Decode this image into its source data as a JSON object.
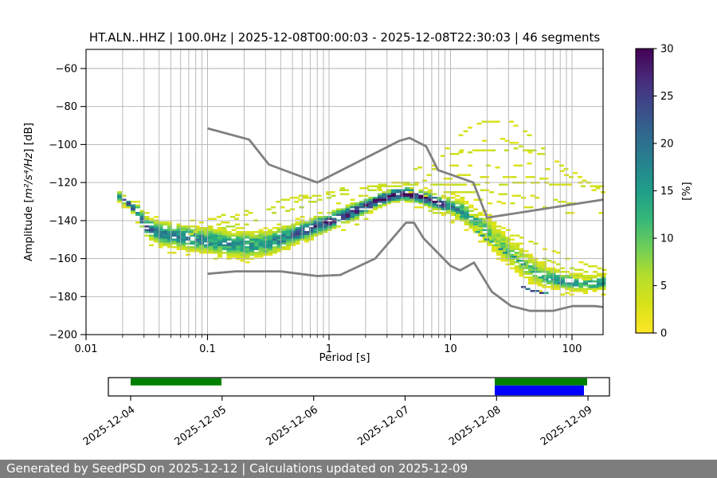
{
  "page": {
    "background": "#ffffff"
  },
  "footer": {
    "text": "Generated by SeedPSD on 2025-12-12 | Calculations updated on 2025-12-09",
    "bg": "#7d7d7d",
    "fg": "#ffffff"
  },
  "chart_data": {
    "type": "heatmap",
    "title": "HT.ALN..HHZ | 100.0Hz | 2025-12-08T00:00:03 - 2025-12-08T22:30:03 | 46 segments",
    "xlabel": "Period [s]",
    "ylabel": "Amplitude [m²/s⁴/Hz] [dB]",
    "ylabel_parts": {
      "pre": "Amplitude [",
      "math": "m²/s⁴/Hz",
      "post": "] [dB]"
    },
    "x_scale": "log",
    "xlim": [
      0.01,
      180
    ],
    "ylim": [
      -200,
      -50
    ],
    "grid": true,
    "x_ticks": [
      0.01,
      0.1,
      1,
      10,
      100
    ],
    "x_tick_labels": [
      "0.01",
      "0.1",
      "1",
      "10",
      "100"
    ],
    "y_ticks": [
      -60,
      -80,
      -100,
      -120,
      -140,
      -160,
      -180,
      -200
    ],
    "y_tick_labels": [
      "−60",
      "−80",
      "−100",
      "−120",
      "−140",
      "−160",
      "−180",
      "−200"
    ],
    "colorbar": {
      "label": "[%]",
      "min": 0,
      "max": 30,
      "ticks": [
        0,
        5,
        10,
        15,
        20,
        25,
        30
      ],
      "colormap": "viridis_r",
      "low_color": "#fde725",
      "high_color": "#440154"
    },
    "noise_models": {
      "color": "#808080",
      "nlnm": [
        [
          0.1,
          -168
        ],
        [
          0.17,
          -166.7
        ],
        [
          0.4,
          -166.7
        ],
        [
          0.8,
          -169.2
        ],
        [
          1.24,
          -168.6
        ],
        [
          2.4,
          -159.98
        ],
        [
          4.3,
          -141.1
        ],
        [
          5,
          -141.1
        ],
        [
          6,
          -149.36
        ],
        [
          10,
          -163.79
        ],
        [
          12,
          -166.2
        ],
        [
          15.6,
          -162.1
        ],
        [
          21.9,
          -177.5
        ],
        [
          31.6,
          -185
        ],
        [
          45,
          -187.5
        ],
        [
          70,
          -187.5
        ],
        [
          101,
          -185
        ],
        [
          154,
          -185
        ],
        [
          180,
          -185.5
        ]
      ],
      "nhnm": [
        [
          0.1,
          -91.5
        ],
        [
          0.22,
          -97.4
        ],
        [
          0.32,
          -110.5
        ],
        [
          0.8,
          -120
        ],
        [
          3.8,
          -98
        ],
        [
          4.6,
          -96.5
        ],
        [
          6.3,
          -101
        ],
        [
          7.9,
          -113.5
        ],
        [
          15.4,
          -120
        ],
        [
          20,
          -138.5
        ],
        [
          180,
          -129
        ]
      ]
    },
    "ppsd": {
      "period_range": [
        0.018,
        180
      ],
      "period_step_decades": 0.0376,
      "db_bin": 1,
      "main_band_anchors": [
        [
          0.018,
          -126.5,
          2.5,
          16
        ],
        [
          0.022,
          -130.5,
          2.5,
          22
        ],
        [
          0.027,
          -135.5,
          3,
          26
        ],
        [
          0.031,
          -143,
          5,
          22
        ],
        [
          0.04,
          -146.5,
          6,
          18
        ],
        [
          0.06,
          -148.5,
          6.5,
          17
        ],
        [
          0.1,
          -150.5,
          6.5,
          17
        ],
        [
          0.15,
          -152,
          6.5,
          16
        ],
        [
          0.22,
          -153,
          7,
          15
        ],
        [
          0.33,
          -151.5,
          6.5,
          16
        ],
        [
          0.5,
          -147.5,
          5.5,
          19
        ],
        [
          0.75,
          -143.5,
          5,
          23
        ],
        [
          1.1,
          -139.5,
          4.5,
          26
        ],
        [
          1.7,
          -134.5,
          4,
          28
        ],
        [
          2.5,
          -129.5,
          3.5,
          29
        ],
        [
          3.5,
          -126.3,
          3.5,
          30
        ],
        [
          4.5,
          -126,
          3.5,
          30
        ],
        [
          6,
          -128,
          3.5,
          27
        ],
        [
          8,
          -130.5,
          4,
          24
        ],
        [
          10.5,
          -133,
          4.5,
          20
        ],
        [
          14,
          -137,
          5.5,
          15
        ],
        [
          18,
          -142.5,
          6.5,
          11
        ],
        [
          24,
          -150,
          7.5,
          9
        ],
        [
          32,
          -157.5,
          7.5,
          9
        ],
        [
          42,
          -163.5,
          7,
          10
        ],
        [
          55,
          -168.5,
          6,
          12
        ],
        [
          75,
          -171,
          5,
          14
        ],
        [
          100,
          -172.3,
          4.5,
          15
        ],
        [
          140,
          -172.8,
          4,
          15
        ],
        [
          180,
          -172.3,
          4,
          15
        ]
      ],
      "features": [
        {
          "name": "upper-arc",
          "pct": 3,
          "density": 0.55,
          "points": [
            [
              4.5,
              -124
            ],
            [
              6,
              -117
            ],
            [
              8,
              -107
            ],
            [
              10,
              -98
            ],
            [
              13,
              -91
            ],
            [
              17,
              -87.5
            ],
            [
              22,
              -86.5
            ],
            [
              28,
              -88
            ],
            [
              35,
              -92
            ],
            [
              45,
              -97.5
            ],
            [
              60,
              -104
            ],
            [
              80,
              -111
            ],
            [
              110,
              -117
            ],
            [
              150,
              -122
            ],
            [
              180,
              -125
            ]
          ]
        },
        {
          "name": "upper-arc-echo",
          "pct": 3,
          "density": 0.5,
          "points": [
            [
              7,
              -115
            ],
            [
              10,
              -107
            ],
            [
              14,
              -101
            ],
            [
              19,
              -97.5
            ],
            [
              26,
              -97
            ],
            [
              35,
              -100
            ],
            [
              50,
              -106
            ],
            [
              70,
              -112
            ],
            [
              100,
              -118
            ],
            [
              140,
              -123
            ],
            [
              180,
              -127
            ]
          ]
        },
        {
          "name": "band-103",
          "pct": 4,
          "density": 0.65,
          "points": [
            [
              9,
              -106
            ],
            [
              12,
              -104
            ],
            [
              17,
              -103
            ],
            [
              25,
              -103
            ],
            [
              35,
              -103.5
            ],
            [
              50,
              -104.5
            ],
            [
              65,
              -106
            ]
          ]
        },
        {
          "name": "band-111",
          "pct": 3,
          "density": 0.45,
          "points": [
            [
              4.5,
              -113
            ],
            [
              7,
              -111.5
            ],
            [
              12,
              -110.5
            ],
            [
              20,
              -110.5
            ],
            [
              35,
              -111
            ],
            [
              60,
              -112
            ],
            [
              90,
              -113.5
            ]
          ]
        },
        {
          "name": "band-121",
          "pct": 4,
          "density": 0.7,
          "points": [
            [
              2.2,
              -122.5
            ],
            [
              4,
              -121.5
            ],
            [
              8,
              -120.8
            ],
            [
              15,
              -120.5
            ],
            [
              30,
              -121
            ],
            [
              60,
              -121.5
            ],
            [
              100,
              -122
            ],
            [
              150,
              -122.5
            ],
            [
              180,
              -122.5
            ]
          ]
        },
        {
          "name": "band-117",
          "pct": 3,
          "density": 0.45,
          "points": [
            [
              8,
              -118
            ],
            [
              14,
              -116.8
            ],
            [
              25,
              -116.5
            ],
            [
              45,
              -117
            ],
            [
              70,
              -117.8
            ]
          ]
        },
        {
          "name": "left-diag-1",
          "pct": 3.5,
          "density": 0.6,
          "points": [
            [
              0.1,
              -140.5
            ],
            [
              0.16,
              -136.5
            ],
            [
              0.27,
              -131.5
            ],
            [
              0.45,
              -127.5
            ],
            [
              0.75,
              -124.5
            ],
            [
              1.3,
              -122.5
            ],
            [
              2.2,
              -121.8
            ],
            [
              3.5,
              -122
            ]
          ]
        },
        {
          "name": "left-diag-2",
          "pct": 4,
          "density": 0.55,
          "points": [
            [
              0.07,
              -146
            ],
            [
              0.12,
              -142
            ],
            [
              0.2,
              -137.5
            ],
            [
              0.35,
              -132.5
            ],
            [
              0.6,
              -128.5
            ],
            [
              1,
              -125.5
            ],
            [
              1.7,
              -124
            ]
          ]
        },
        {
          "name": "left-diag-3",
          "pct": 5.5,
          "density": 0.6,
          "points": [
            [
              0.13,
              -145
            ],
            [
              0.22,
              -141
            ],
            [
              0.4,
              -136
            ],
            [
              0.7,
              -131
            ],
            [
              1.2,
              -127.5
            ],
            [
              2,
              -125
            ],
            [
              3.2,
              -123.5
            ]
          ]
        },
        {
          "name": "lower-right-1",
          "pct": 4.5,
          "density": 0.65,
          "points": [
            [
              6,
              -133.5
            ],
            [
              10,
              -137
            ],
            [
              17,
              -143
            ],
            [
              28,
              -151
            ],
            [
              45,
              -158.5
            ],
            [
              75,
              -164.5
            ],
            [
              120,
              -167.5
            ],
            [
              180,
              -169
            ]
          ]
        },
        {
          "name": "lower-right-2",
          "pct": 3.5,
          "density": 0.55,
          "points": [
            [
              9,
              -139
            ],
            [
              14,
              -144
            ],
            [
              22,
              -151
            ],
            [
              35,
              -158
            ],
            [
              60,
              -165
            ],
            [
              100,
              -169
            ],
            [
              160,
              -170.5
            ]
          ]
        },
        {
          "name": "lower-right-3",
          "pct": 3,
          "density": 0.5,
          "points": [
            [
              12,
              -135
            ],
            [
              20,
              -140
            ],
            [
              32,
              -147
            ],
            [
              50,
              -154
            ],
            [
              85,
              -160
            ],
            [
              140,
              -164
            ],
            [
              180,
              -166
            ]
          ]
        },
        {
          "name": "mid-scatter-1",
          "pct": 3,
          "density": 0.5,
          "points": [
            [
              6,
              -127
            ],
            [
              11,
              -128
            ],
            [
              22,
              -130
            ],
            [
              45,
              -133
            ],
            [
              90,
              -137
            ],
            [
              160,
              -141
            ]
          ]
        },
        {
          "name": "mid-scatter-2",
          "pct": 3.5,
          "density": 0.5,
          "points": [
            [
              8,
              -124.5
            ],
            [
              16,
              -125
            ],
            [
              32,
              -127
            ],
            [
              65,
              -130
            ],
            [
              130,
              -134
            ],
            [
              180,
              -136
            ]
          ]
        },
        {
          "name": "bottom-edge",
          "pct": 14,
          "density": 0.85,
          "points": [
            [
              16,
              -146
            ],
            [
              22,
              -152.5
            ],
            [
              30,
              -159
            ],
            [
              40,
              -164.5
            ],
            [
              52,
              -169
            ],
            [
              68,
              -171.5
            ],
            [
              90,
              -173
            ],
            [
              120,
              -174
            ],
            [
              155,
              -173.5
            ],
            [
              180,
              -173
            ]
          ]
        },
        {
          "name": "bottom-dark-spots",
          "pct": 19,
          "density": 0.5,
          "points": [
            [
              38,
              -174.5
            ],
            [
              48,
              -176
            ],
            [
              58,
              -177
            ],
            [
              68,
              -176
            ]
          ]
        },
        {
          "name": "peak-top-fringe",
          "pct": 3,
          "density": 0.4,
          "points": [
            [
              1.5,
              -124
            ],
            [
              2.5,
              -121.5
            ],
            [
              4,
              -120.5
            ],
            [
              5.5,
              -121
            ]
          ]
        }
      ]
    },
    "timeline": {
      "axis_start_day": -0.244,
      "axis_end_day": 5.234,
      "tick_labels": [
        "2025-12-04",
        "2025-12-05",
        "2025-12-06",
        "2025-12-07",
        "2025-12-08",
        "2025-12-09"
      ],
      "segments": [
        {
          "name": "data-early",
          "color": "#008000",
          "start_day": 0,
          "end_day": 0.993,
          "half": "top"
        },
        {
          "name": "data-current",
          "color": "#008000",
          "start_day": 3.98,
          "end_day": 4.99,
          "half": "top"
        },
        {
          "name": "selected-window",
          "color": "#0000ff",
          "start_day": 3.98,
          "end_day": 4.955,
          "half": "bottom"
        }
      ]
    }
  }
}
